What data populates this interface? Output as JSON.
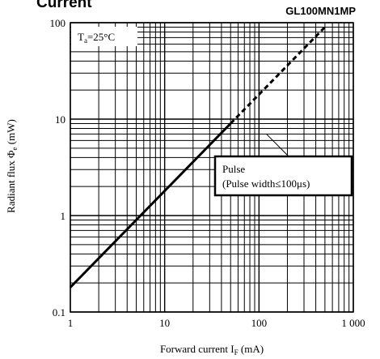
{
  "header": {
    "title_fragment": "Current",
    "model": "GL100MN1MP"
  },
  "chart_data": {
    "type": "line",
    "x_scale": "log",
    "y_scale": "log",
    "xlim": [
      1,
      1000
    ],
    "ylim": [
      0.1,
      100
    ],
    "grid": true,
    "x_ticks": [
      {
        "value": 1,
        "label": "1"
      },
      {
        "value": 10,
        "label": "10"
      },
      {
        "value": 100,
        "label": "100"
      },
      {
        "value": 1000,
        "label": "1 000"
      }
    ],
    "y_ticks": [
      {
        "value": 0.1,
        "label": "0.1"
      },
      {
        "value": 1,
        "label": "1"
      },
      {
        "value": 10,
        "label": "10"
      },
      {
        "value": 100,
        "label": "100"
      }
    ],
    "xlabel": {
      "main": "Forward current I",
      "sub": "F",
      "unit": " (mA)"
    },
    "ylabel": {
      "main": "Radiant flux Φ",
      "sub": "e",
      "unit": " (mW)"
    },
    "condition": {
      "main": "T",
      "sub": "a",
      "rest": "=25°C"
    },
    "series": [
      {
        "style": "solid",
        "x": [
          1,
          50
        ],
        "y": [
          0.18,
          9.0
        ]
      },
      {
        "style": "dashed",
        "x": [
          50,
          500
        ],
        "y": [
          9.0,
          90
        ]
      }
    ],
    "annotation": {
      "line1": "Pulse",
      "line2": "(Pulse width≤100μs)",
      "points_to": {
        "x": 120,
        "y": 7.0
      }
    }
  }
}
